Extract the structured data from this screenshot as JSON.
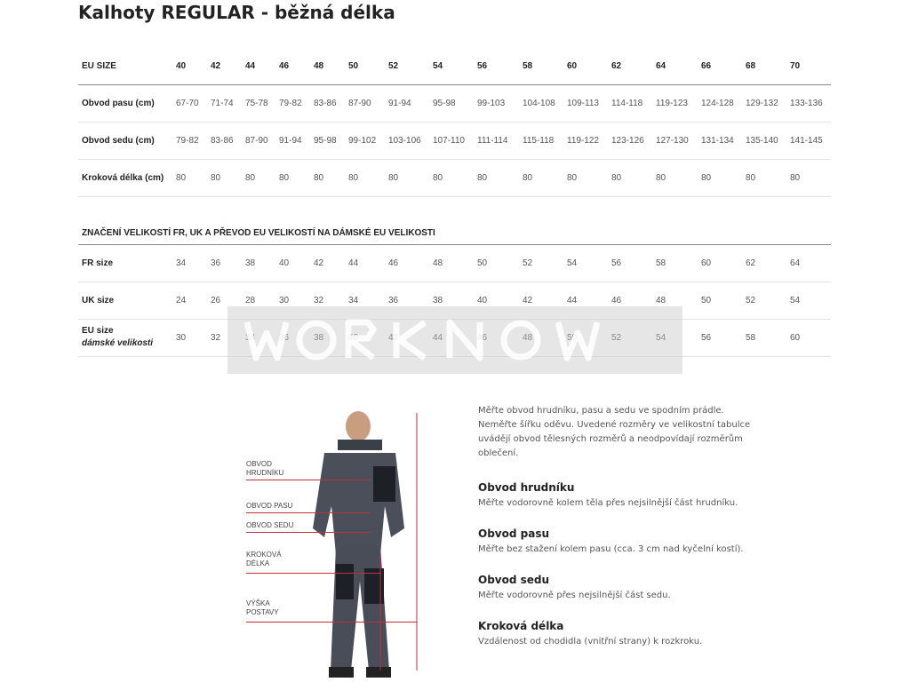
{
  "title": "Kalhoty REGULAR - běžná délka",
  "table1": {
    "header_label": "EU SIZE",
    "sizes": [
      "40",
      "42",
      "44",
      "46",
      "48",
      "50",
      "52",
      "54",
      "56",
      "58",
      "60",
      "62",
      "64",
      "66",
      "68",
      "70"
    ],
    "rows": [
      {
        "label": "Obvod pasu (cm)",
        "values": [
          "67-70",
          "71-74",
          "75-78",
          "79-82",
          "83-86",
          "87-90",
          "91-94",
          "95-98",
          "99-103",
          "104-108",
          "109-113",
          "114-118",
          "119-123",
          "124-128",
          "129-132",
          "133-136"
        ]
      },
      {
        "label": "Obvod sedu (cm)",
        "values": [
          "79-82",
          "83-86",
          "87-90",
          "91-94",
          "95-98",
          "99-102",
          "103-106",
          "107-110",
          "111-114",
          "115-118",
          "119-122",
          "123-126",
          "127-130",
          "131-134",
          "135-140",
          "141-145"
        ]
      },
      {
        "label": "Kroková délka (cm)",
        "values": [
          "80",
          "80",
          "80",
          "80",
          "80",
          "80",
          "80",
          "80",
          "80",
          "80",
          "80",
          "80",
          "80",
          "80",
          "80",
          "80"
        ]
      }
    ]
  },
  "table2": {
    "heading": "ZNAČENÍ VELIKOSTÍ FR, UK A PŘEVOD EU VELIKOSTÍ NA DÁMSKÉ EU VELIKOSTI",
    "rows": [
      {
        "label": "FR size",
        "values": [
          "34",
          "36",
          "38",
          "40",
          "42",
          "44",
          "46",
          "48",
          "50",
          "52",
          "54",
          "56",
          "58",
          "60",
          "62",
          "64"
        ]
      },
      {
        "label": "UK size",
        "values": [
          "24",
          "26",
          "28",
          "30",
          "32",
          "34",
          "36",
          "38",
          "40",
          "42",
          "44",
          "46",
          "48",
          "50",
          "52",
          "54"
        ]
      },
      {
        "label": "EU size",
        "sublabel": "dámské velikosti",
        "values": [
          "30",
          "32",
          "34",
          "36",
          "38",
          "40",
          "42",
          "44",
          "46",
          "48",
          "50",
          "52",
          "54",
          "56",
          "58",
          "60"
        ]
      }
    ]
  },
  "watermark": "WORKNOW",
  "figure": {
    "labels": [
      "OBVOD HRUDNÍKU",
      "OBVOD PASU",
      "OBVOD SEDU",
      "KROKOVÁ DÉLKA",
      "VÝŠKA POSTAVY"
    ],
    "line_color": "#c0303a"
  },
  "info": {
    "intro": "Měřte obvod hrudníku, pasu a sedu ve spodním prádle. Neměřte šířku oděvu. Uvedené rozměry ve velikostní tabulce uvádějí obvod tělesných rozměrů a neodpovídají rozměrům oblečení.",
    "sections": [
      {
        "title": "Obvod hrudníku",
        "text": "Měřte vodorovně kolem těla přes nejsilnější část hrudníku."
      },
      {
        "title": "Obvod pasu",
        "text": "Měřte bez stažení kolem pasu (cca. 3 cm nad kyčelní kostí)."
      },
      {
        "title": "Obvod sedu",
        "text": "Měřte vodorovně přes nejsilnější část sedu."
      },
      {
        "title": "Kroková délka",
        "text": "Vzdálenost od chodidla (vnitřní strany) k rozkroku."
      }
    ]
  }
}
